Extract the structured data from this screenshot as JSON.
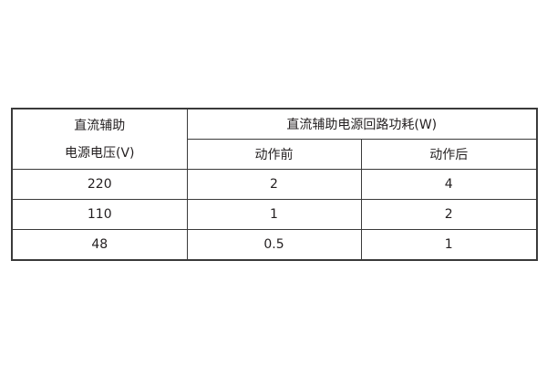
{
  "table": {
    "header": {
      "voltage_line1": "直流辅助",
      "voltage_line2": "电源电压(V)",
      "power_group": "直流辅助电源回路功耗(W)",
      "before": "动作前",
      "after": "动作后"
    },
    "rows": [
      {
        "voltage": "220",
        "before": "2",
        "after": "4"
      },
      {
        "voltage": "110",
        "before": "1",
        "after": "2"
      },
      {
        "voltage": "48",
        "before": "0.5",
        "after": "1"
      }
    ]
  }
}
